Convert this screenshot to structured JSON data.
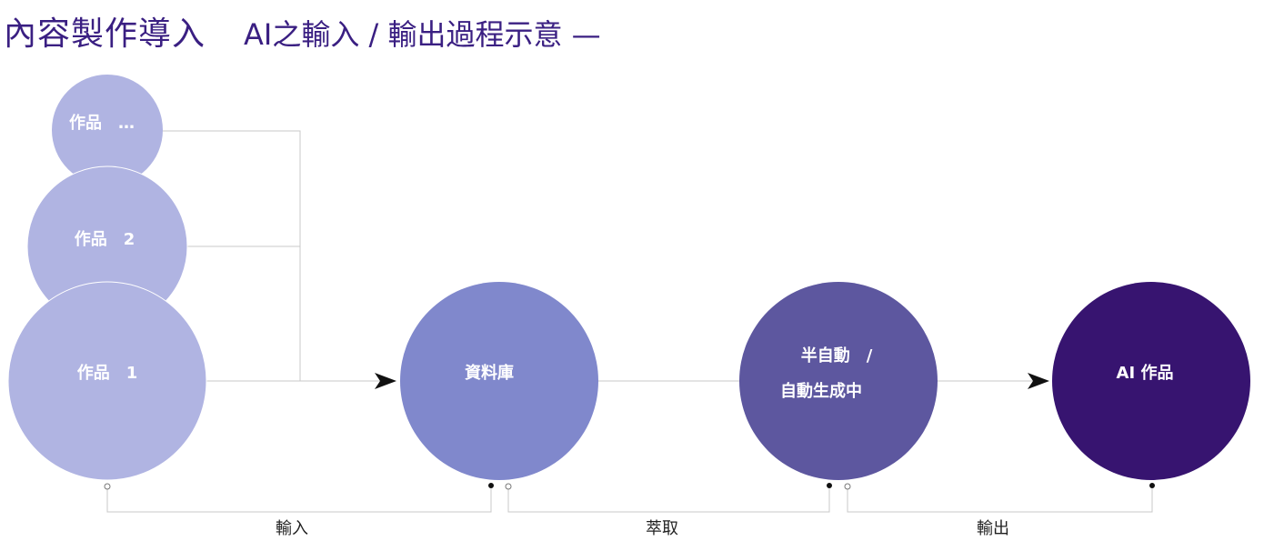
{
  "title": {
    "main": "內容製作導入",
    "sub": "AI之輸入 / 輸出過程示意 —"
  },
  "nodes": {
    "work_more": {
      "label": "作品　…",
      "color": "#b0b4e2"
    },
    "work_2": {
      "label": "作品　2",
      "color": "#b0b4e2"
    },
    "work_1": {
      "label": "作品　1",
      "color": "#b0b4e2"
    },
    "database": {
      "label": "資料庫",
      "color": "#8088cc"
    },
    "generating": {
      "line1": "半自動　/",
      "line2": "自動生成中",
      "color": "#5d579f"
    },
    "ai_work": {
      "label": "AI  作品",
      "color": "#371470"
    }
  },
  "stages": {
    "input": "輸入",
    "extract": "萃取",
    "output": "輸出"
  }
}
